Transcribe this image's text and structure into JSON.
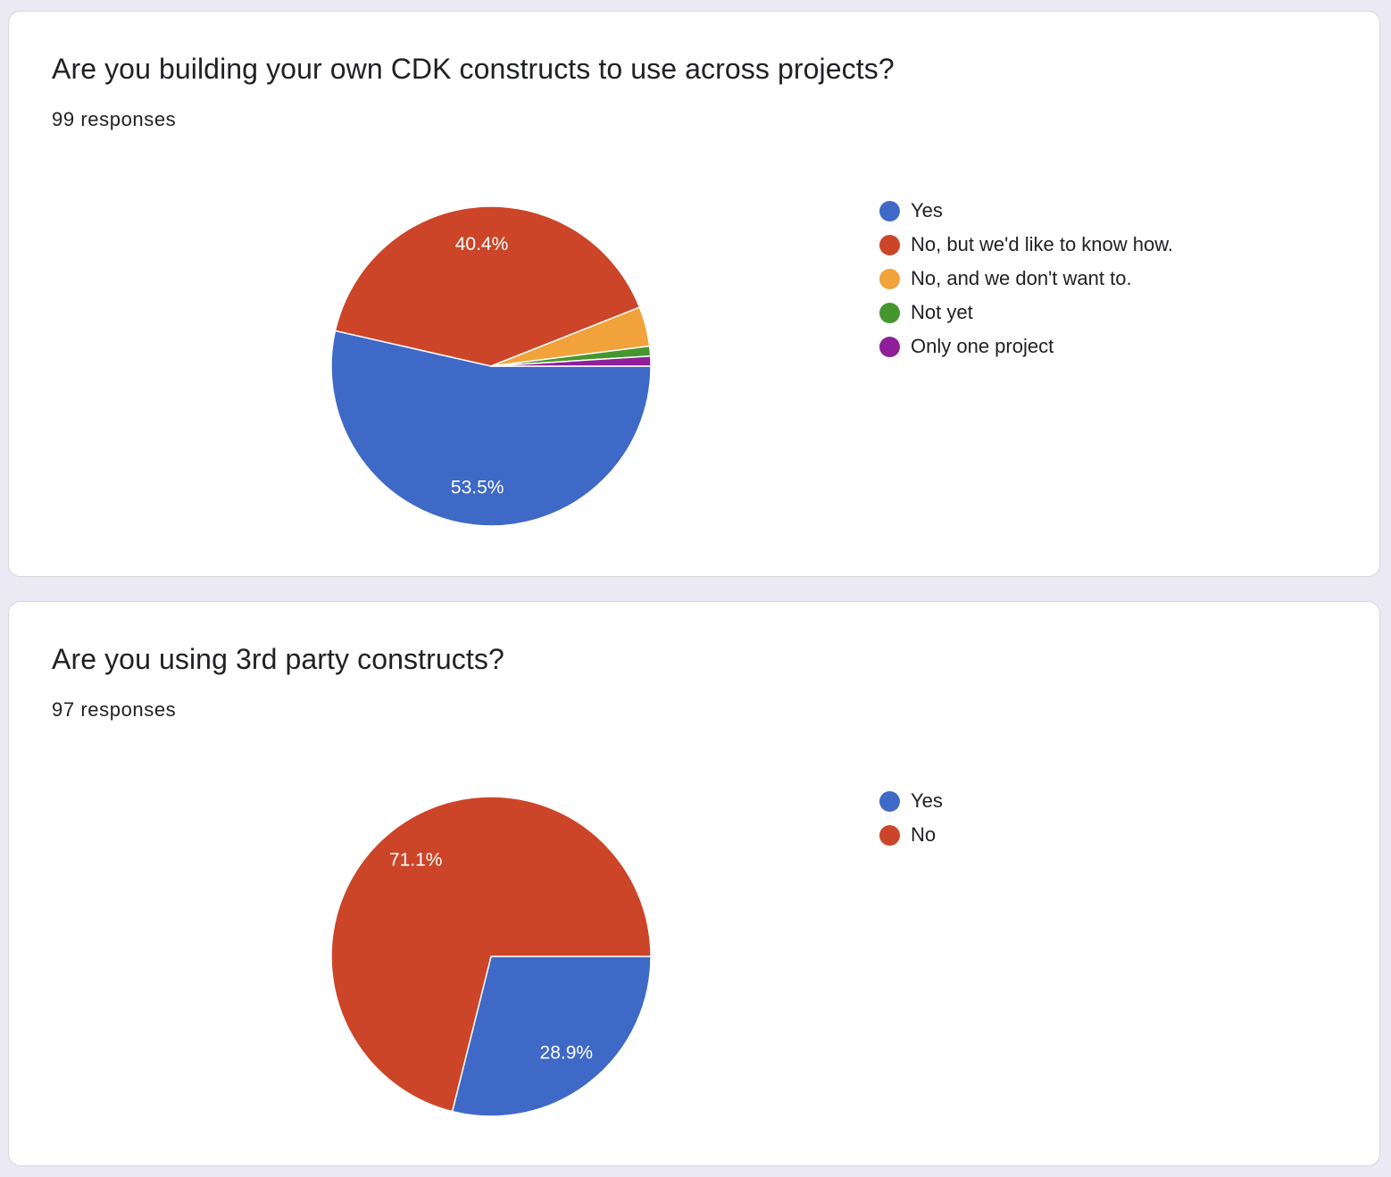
{
  "questions": [
    {
      "title": "Are you building your own CDK constructs to use across projects?",
      "responses": "99 responses",
      "chart_data": {
        "type": "pie",
        "title": "Are you building your own CDK constructs to use across projects?",
        "categories": [
          "Yes",
          "No, but we'd like to know how.",
          "No, and we don't want to.",
          "Not yet",
          "Only one project"
        ],
        "values": [
          53.5,
          40.4,
          4.0,
          1.0,
          1.0
        ],
        "counts": [
          53,
          40,
          4,
          1,
          1
        ],
        "data_labels": [
          "53.5%",
          "40.4%",
          "",
          "",
          ""
        ],
        "colors": [
          "#3e69c6",
          "#cc4528",
          "#f1a23a",
          "#46962f",
          "#8e1f98"
        ],
        "legend_position": "right"
      }
    },
    {
      "title": "Are you using 3rd party constructs?",
      "responses": "97 responses",
      "chart_data": {
        "type": "pie",
        "title": "Are you using 3rd party constructs?",
        "categories": [
          "Yes",
          "No"
        ],
        "values": [
          28.9,
          71.1
        ],
        "counts": [
          28,
          69
        ],
        "data_labels": [
          "28.9%",
          "71.1%"
        ],
        "colors": [
          "#3e69c6",
          "#cc4528"
        ],
        "legend_position": "right"
      }
    }
  ]
}
